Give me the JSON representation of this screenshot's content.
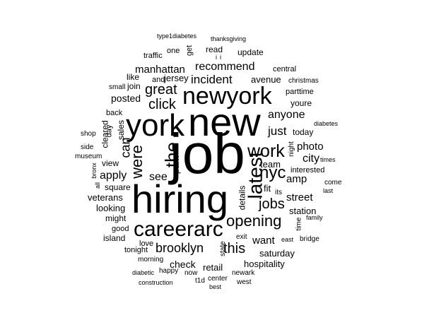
{
  "words": [
    {
      "id": "job",
      "text": "job"
    },
    {
      "id": "new",
      "text": "new"
    },
    {
      "id": "hiring",
      "text": "hiring"
    },
    {
      "id": "york",
      "text": "york"
    },
    {
      "id": "newyork",
      "text": "newyork"
    },
    {
      "id": "careerarc",
      "text": "careerarc"
    },
    {
      "id": "latest",
      "text": "latest"
    },
    {
      "id": "work",
      "text": "work"
    },
    {
      "id": "opening",
      "text": "opening"
    },
    {
      "id": "nyc",
      "text": "nyc"
    },
    {
      "id": "the",
      "text": "the"
    },
    {
      "id": "were",
      "text": "were"
    },
    {
      "id": "can",
      "text": "can"
    },
    {
      "id": "jobs",
      "text": "jobs"
    },
    {
      "id": "great",
      "text": "great"
    },
    {
      "id": "click",
      "text": "click"
    },
    {
      "id": "brooklyn",
      "text": "brooklyn"
    },
    {
      "id": "this",
      "text": "this"
    },
    {
      "id": "incident",
      "text": "incident"
    },
    {
      "id": "recommend",
      "text": "recommend"
    },
    {
      "id": "manhattan",
      "text": "manhattan"
    },
    {
      "id": "just",
      "text": "just"
    },
    {
      "id": "anyone",
      "text": "anyone"
    },
    {
      "id": "apply",
      "text": "apply"
    },
    {
      "id": "see",
      "text": "see"
    },
    {
      "id": "city",
      "text": "city"
    },
    {
      "id": "photo",
      "text": "photo"
    },
    {
      "id": "want",
      "text": "want"
    },
    {
      "id": "street",
      "text": "street"
    },
    {
      "id": "amp",
      "text": "amp"
    },
    {
      "id": "fit",
      "text": "fit"
    },
    {
      "id": "avenue",
      "text": "avenue"
    },
    {
      "id": "posted",
      "text": "posted"
    },
    {
      "id": "check",
      "text": "check"
    },
    {
      "id": "team",
      "text": "team"
    },
    {
      "id": "veterans",
      "text": "veterans"
    },
    {
      "id": "looking",
      "text": "looking"
    },
    {
      "id": "hospitality",
      "text": "hospitality"
    },
    {
      "id": "saturday",
      "text": "saturday"
    },
    {
      "id": "station",
      "text": "station"
    },
    {
      "id": "park",
      "text": "park"
    },
    {
      "id": "today",
      "text": "today"
    },
    {
      "id": "retail",
      "text": "retail"
    },
    {
      "id": "details",
      "text": "details"
    },
    {
      "id": "youre",
      "text": "youre"
    },
    {
      "id": "jersey",
      "text": "jersey"
    },
    {
      "id": "join",
      "text": "join"
    },
    {
      "id": "sales",
      "text": "sales"
    },
    {
      "id": "cleared",
      "text": "cleared"
    },
    {
      "id": "view",
      "text": "view"
    },
    {
      "id": "square",
      "text": "square"
    },
    {
      "id": "might",
      "text": "might"
    },
    {
      "id": "island",
      "text": "island"
    },
    {
      "id": "tonight",
      "text": "tonight"
    },
    {
      "id": "interested",
      "text": "interested"
    },
    {
      "id": "update",
      "text": "update"
    },
    {
      "id": "read",
      "text": "read"
    },
    {
      "id": "one",
      "text": "one"
    },
    {
      "id": "get",
      "text": "get"
    },
    {
      "id": "traffic",
      "text": "traffic"
    },
    {
      "id": "like",
      "text": "like"
    },
    {
      "id": "and",
      "text": "and"
    },
    {
      "id": "small",
      "text": "small"
    },
    {
      "id": "central",
      "text": "central"
    },
    {
      "id": "christmas",
      "text": "christmas"
    },
    {
      "id": "parttime",
      "text": "parttime"
    },
    {
      "id": "back",
      "text": "back"
    },
    {
      "id": "shop",
      "text": "shop"
    },
    {
      "id": "side",
      "text": "side"
    },
    {
      "id": "day",
      "text": "day"
    },
    {
      "id": "museum",
      "text": "museum"
    },
    {
      "id": "bronx",
      "text": "bronx"
    },
    {
      "id": "all",
      "text": "all"
    },
    {
      "id": "good",
      "text": "good"
    },
    {
      "id": "love",
      "text": "love"
    },
    {
      "id": "morning",
      "text": "morning"
    },
    {
      "id": "happy",
      "text": "happy"
    },
    {
      "id": "diabetic",
      "text": "diabetic"
    },
    {
      "id": "construction",
      "text": "construction"
    },
    {
      "id": "now",
      "text": "now"
    },
    {
      "id": "t1d",
      "text": "t1d"
    },
    {
      "id": "center",
      "text": "center"
    },
    {
      "id": "best",
      "text": "best"
    },
    {
      "id": "west",
      "text": "west"
    },
    {
      "id": "newark",
      "text": "newark"
    },
    {
      "id": "state",
      "text": "state"
    },
    {
      "id": "exit",
      "text": "exit"
    },
    {
      "id": "east",
      "text": "east"
    },
    {
      "id": "bridge",
      "text": "bridge"
    },
    {
      "id": "family",
      "text": "family"
    },
    {
      "id": "time",
      "text": "time"
    },
    {
      "id": "its",
      "text": "its"
    },
    {
      "id": "come",
      "text": "come"
    },
    {
      "id": "last",
      "text": "last"
    },
    {
      "id": "times",
      "text": "times"
    },
    {
      "id": "diabetes",
      "text": "diabetes"
    },
    {
      "id": "night",
      "text": "night"
    },
    {
      "id": "type1diabetes",
      "text": "type1diabetes"
    },
    {
      "id": "thanksgiving",
      "text": "thanksgiving"
    },
    {
      "id": "i_one",
      "text": "i"
    },
    {
      "id": "i_two",
      "text": "i"
    }
  ]
}
